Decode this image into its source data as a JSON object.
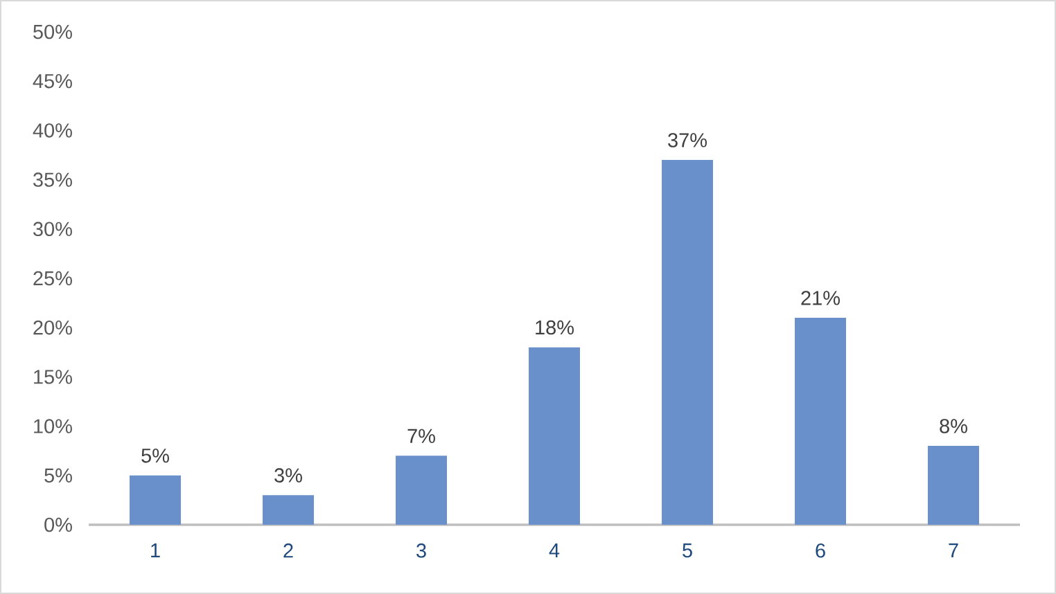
{
  "chart_data": {
    "type": "bar",
    "categories": [
      "1",
      "2",
      "3",
      "4",
      "5",
      "6",
      "7"
    ],
    "values": [
      5,
      3,
      7,
      18,
      37,
      21,
      8
    ],
    "value_labels": [
      "5%",
      "3%",
      "7%",
      "18%",
      "37%",
      "21%",
      "8%"
    ],
    "color": "#6a90cc",
    "ylim": [
      0,
      50
    ],
    "yticks": [
      {
        "value": 0,
        "label": "0%"
      },
      {
        "value": 5,
        "label": "5%"
      },
      {
        "value": 10,
        "label": "10%"
      },
      {
        "value": 15,
        "label": "15%"
      },
      {
        "value": 20,
        "label": "20%"
      },
      {
        "value": 25,
        "label": "25%"
      },
      {
        "value": 30,
        "label": "30%"
      },
      {
        "value": 35,
        "label": "35%"
      },
      {
        "value": 40,
        "label": "40%"
      },
      {
        "value": 45,
        "label": "45%"
      },
      {
        "value": 50,
        "label": "50%"
      }
    ]
  }
}
